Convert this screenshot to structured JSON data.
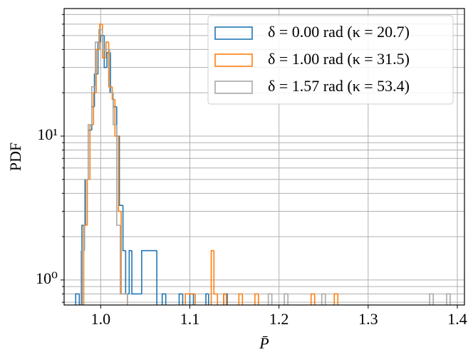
{
  "chart_data": {
    "type": "histogram",
    "xlabel": "P̄",
    "ylabel": "PDF",
    "xlim": [
      0.959,
      1.408
    ],
    "ylim": [
      0.67,
      77
    ],
    "log_y": true,
    "grid": true,
    "legend": "upper right",
    "xticks": [
      {
        "value": 1.0,
        "label": "1.0"
      },
      {
        "value": 1.1,
        "label": "1.1"
      },
      {
        "value": 1.2,
        "label": "1.2"
      },
      {
        "value": 1.3,
        "label": "1.3"
      },
      {
        "value": 1.4,
        "label": "1.4"
      }
    ],
    "yticks": [
      {
        "value": 1,
        "label": "10⁰"
      },
      {
        "value": 10,
        "label": "10¹"
      }
    ],
    "yminorticks": [
      0.7,
      0.8,
      0.9,
      2,
      3,
      4,
      5,
      6,
      7,
      8,
      9,
      20,
      30,
      40,
      50,
      60,
      70
    ],
    "series": [
      {
        "name": "δ = 0.00 rad (κ = 20.7)",
        "color": "#1f77b4",
        "bins": [
          0.972,
          0.976,
          0.979,
          0.983,
          0.986,
          0.99,
          0.993,
          0.997,
          1.0,
          1.004,
          1.007,
          1.011,
          1.014,
          1.018,
          1.021,
          1.025,
          1.028,
          1.032,
          1.035,
          1.039,
          1.046,
          1.063,
          1.069,
          1.073,
          1.088,
          1.092,
          1.1,
          1.104,
          1.118,
          1.121,
          1.138,
          1.142
        ],
        "values": [
          0.8,
          0,
          2.4,
          5,
          11,
          16,
          27,
          45,
          50,
          30,
          38,
          20,
          16,
          10,
          3.3,
          1.6,
          0.8,
          1.6,
          0.8,
          0.8,
          1.6,
          0,
          0.8,
          0,
          0.8,
          0,
          0.8,
          0,
          0.8,
          0,
          0.8
        ]
      },
      {
        "name": "δ = 1.00 rad (κ = 31.5)",
        "color": "#ff7f0e",
        "bins": [
          0.981,
          0.985,
          0.988,
          0.992,
          0.995,
          0.999,
          1.002,
          1.006,
          1.009,
          1.013,
          1.016,
          1.02,
          1.023,
          1.027,
          1.03,
          1.095,
          1.106,
          1.124,
          1.127,
          1.131,
          1.138,
          1.141,
          1.155,
          1.159,
          1.173,
          1.177,
          1.236,
          1.24,
          1.262,
          1.266
        ],
        "values": [
          2.4,
          5,
          12,
          20,
          40,
          60,
          35,
          45,
          22,
          18,
          10,
          3,
          0.8,
          0.8,
          0,
          0.8,
          0,
          1.6,
          0.8,
          0,
          0.8,
          0,
          0.8,
          0,
          0.8,
          0,
          0.8,
          0,
          0.8
        ]
      },
      {
        "name": "δ = 1.57 rad (κ = 53.4)",
        "color": "#a9a9a9",
        "bins": [
          0.978,
          0.982,
          0.986,
          0.99,
          0.994,
          0.998,
          1.002,
          1.006,
          1.01,
          1.014,
          1.018,
          1.022,
          1.026,
          1.03,
          1.188,
          1.192,
          1.206,
          1.21,
          1.248,
          1.252,
          1.369,
          1.373,
          1.388,
          1.392
        ],
        "values": [
          1.6,
          5,
          12,
          22,
          45,
          55,
          40,
          40,
          20,
          12,
          2.4,
          0.8,
          0.8,
          0,
          0.8,
          0,
          0.8,
          0,
          0.8,
          0,
          0.8,
          0,
          0.8
        ]
      }
    ]
  }
}
